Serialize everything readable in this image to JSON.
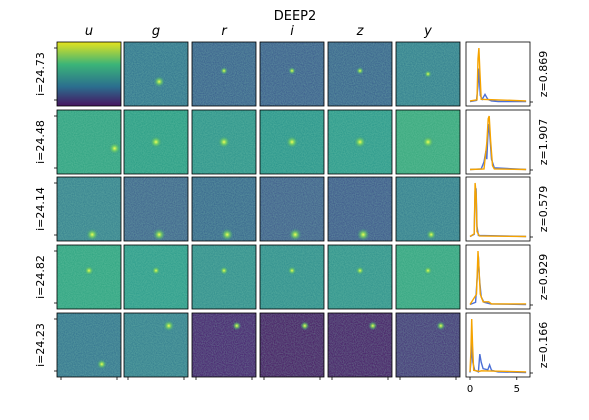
{
  "figure": {
    "title": "DEEP2",
    "bands": [
      "u",
      "g",
      "r",
      "i",
      "z",
      "y"
    ],
    "x_ticks": [
      "0",
      "5"
    ]
  },
  "rows": [
    {
      "mag": "i=24.73",
      "z": "z=0.869",
      "u_gradient": true,
      "pdf_blue": [
        [
          0.0,
          0.01
        ],
        [
          0.7,
          0.03
        ],
        [
          0.85,
          0.3
        ],
        [
          0.95,
          0.62
        ],
        [
          1.1,
          0.12
        ],
        [
          1.3,
          0.05
        ],
        [
          1.6,
          0.14
        ],
        [
          1.9,
          0.05
        ],
        [
          2.3,
          0.02
        ],
        [
          3,
          0.01
        ],
        [
          6,
          0.01
        ]
      ],
      "pdf_orange": [
        [
          0,
          0.02
        ],
        [
          0.75,
          0.04
        ],
        [
          0.85,
          0.8
        ],
        [
          0.95,
          1.0
        ],
        [
          1.05,
          0.6
        ],
        [
          1.2,
          0.05
        ],
        [
          6,
          0.02
        ]
      ]
    },
    {
      "mag": "i=24.48",
      "z": "z=1.907",
      "u_gradient": false,
      "pdf_blue": [
        [
          0,
          0.01
        ],
        [
          1.2,
          0.02
        ],
        [
          1.5,
          0.15
        ],
        [
          1.7,
          0.35
        ],
        [
          1.8,
          0.2
        ],
        [
          1.9,
          0.6
        ],
        [
          2.0,
          0.85
        ],
        [
          2.1,
          0.7
        ],
        [
          2.3,
          0.2
        ],
        [
          2.6,
          0.04
        ],
        [
          6,
          0.01
        ]
      ],
      "pdf_orange": [
        [
          0,
          0.01
        ],
        [
          1.5,
          0.02
        ],
        [
          1.8,
          0.5
        ],
        [
          1.95,
          0.95
        ],
        [
          2.05,
          1.0
        ],
        [
          2.2,
          0.55
        ],
        [
          2.4,
          0.08
        ],
        [
          2.6,
          0.02
        ],
        [
          6,
          0.01
        ]
      ]
    },
    {
      "mag": "i=24.14",
      "z": "z=0.579",
      "u_gradient": false,
      "pdf_blue": [
        [
          0,
          0.01
        ],
        [
          0.45,
          0.05
        ],
        [
          0.55,
          0.85
        ],
        [
          0.65,
          0.9
        ],
        [
          0.75,
          0.2
        ],
        [
          0.9,
          0.03
        ],
        [
          6,
          0.01
        ]
      ],
      "pdf_orange": [
        [
          0,
          0.01
        ],
        [
          0.45,
          0.06
        ],
        [
          0.55,
          1.0
        ],
        [
          0.65,
          0.8
        ],
        [
          0.75,
          0.1
        ],
        [
          1.0,
          0.02
        ],
        [
          6,
          0.01
        ]
      ]
    },
    {
      "mag": "i=24.82",
      "z": "z=0.929",
      "u_gradient": false,
      "pdf_blue": [
        [
          0,
          0.01
        ],
        [
          0.6,
          0.05
        ],
        [
          0.8,
          0.6
        ],
        [
          0.9,
          0.9
        ],
        [
          1.0,
          0.5
        ],
        [
          1.2,
          0.15
        ],
        [
          1.5,
          0.05
        ],
        [
          2.2,
          0.02
        ],
        [
          6,
          0.01
        ]
      ],
      "pdf_orange": [
        [
          0,
          0.01
        ],
        [
          0.7,
          0.2
        ],
        [
          0.85,
          1.0
        ],
        [
          0.95,
          0.7
        ],
        [
          1.1,
          0.2
        ],
        [
          1.4,
          0.06
        ],
        [
          2.0,
          0.06
        ],
        [
          2.3,
          0.02
        ],
        [
          6,
          0.02
        ]
      ]
    },
    {
      "mag": "i=24.23",
      "z": "z=0.166",
      "u_gradient": false,
      "pdf_blue": [
        [
          0,
          0.01
        ],
        [
          0.1,
          0.2
        ],
        [
          0.2,
          0.55
        ],
        [
          0.3,
          0.2
        ],
        [
          0.5,
          0.05
        ],
        [
          0.9,
          0.02
        ],
        [
          1.05,
          0.35
        ],
        [
          1.2,
          0.2
        ],
        [
          1.4,
          0.08
        ],
        [
          1.9,
          0.06
        ],
        [
          2.1,
          0.15
        ],
        [
          2.3,
          0.05
        ],
        [
          3,
          0.02
        ],
        [
          6,
          0.01
        ]
      ],
      "pdf_orange": [
        [
          0,
          0.02
        ],
        [
          0.1,
          0.4
        ],
        [
          0.18,
          1.0
        ],
        [
          0.28,
          0.5
        ],
        [
          0.4,
          0.05
        ],
        [
          1.0,
          0.03
        ],
        [
          1.2,
          0.04
        ],
        [
          6,
          0.02
        ]
      ]
    }
  ],
  "colors": {
    "pdf_blue": "#4b6fd6",
    "pdf_orange": "#f5a300"
  }
}
